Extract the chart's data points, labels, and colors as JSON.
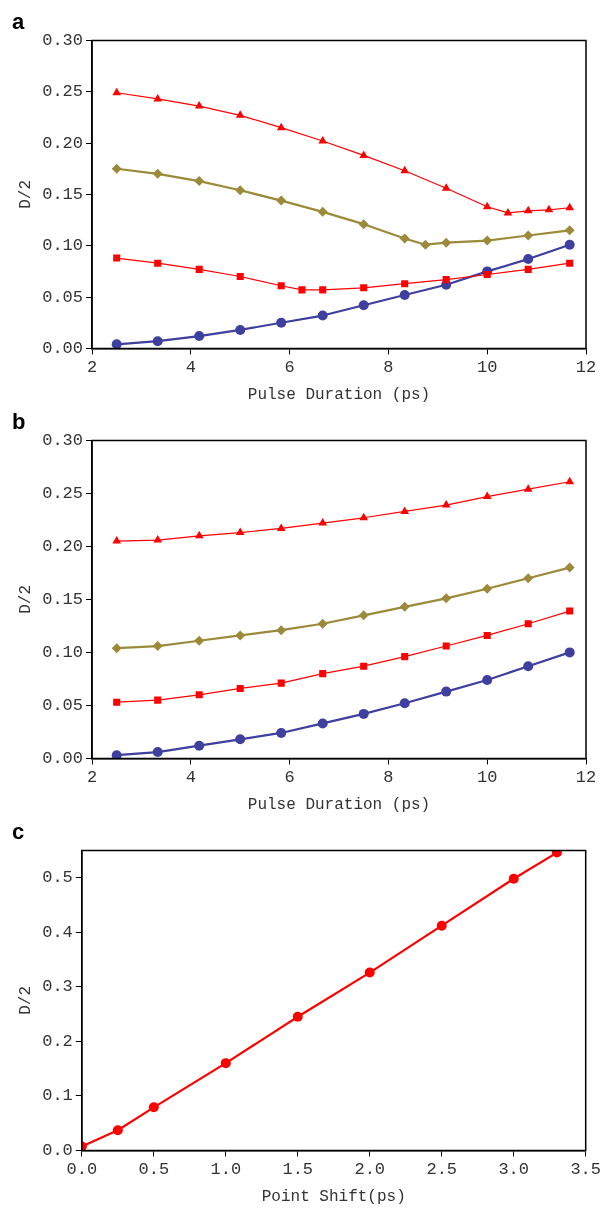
{
  "chart_data": [
    {
      "type": "line",
      "title": "a",
      "xlabel": "Pulse Duration (ps)",
      "ylabel": "D/2",
      "xlim": [
        2,
        12
      ],
      "xticks": [
        2,
        4,
        6,
        8,
        10,
        12
      ],
      "ylim": [
        0,
        0.3
      ],
      "yticks": [
        {
          "value": 0,
          "label": "0.00"
        },
        {
          "value": 0.05,
          "label": "0.05"
        },
        {
          "value": 0.1,
          "label": "0.10"
        },
        {
          "value": 0.15,
          "label": "0.15"
        },
        {
          "value": 0.2,
          "label": "0.20"
        },
        {
          "value": 0.25,
          "label": "0.25"
        },
        {
          "value": 0.3,
          "label": "0.30"
        }
      ],
      "grid": false,
      "line_style": "solid",
      "series": [
        {
          "color": "#ff0000",
          "marker": "triangle",
          "x": [
            2.5,
            3.33,
            4.17,
            5,
            5.83,
            6.67,
            7.5,
            8.33,
            9.17,
            10,
            10.42,
            10.83,
            11.25,
            11.67
          ],
          "values": [
            0.249,
            0.243,
            0.236,
            0.227,
            0.215,
            0.202,
            0.188,
            0.173,
            0.156,
            0.138,
            0.132,
            0.134,
            0.135,
            0.137
          ]
        },
        {
          "color": "#9a8a3a",
          "marker": "diamond",
          "x": [
            2.5,
            3.33,
            4.17,
            5,
            5.83,
            6.67,
            7.5,
            8.33,
            8.75,
            9.17,
            10,
            10.83,
            11.67
          ],
          "values": [
            0.175,
            0.17,
            0.163,
            0.154,
            0.144,
            0.133,
            0.121,
            0.107,
            0.101,
            0.103,
            0.105,
            0.11,
            0.115
          ]
        },
        {
          "color": "#ff0000",
          "marker": "square",
          "x": [
            2.5,
            3.33,
            4.17,
            5,
            5.83,
            6.25,
            6.67,
            7.5,
            8.33,
            9.17,
            10,
            10.83,
            11.67
          ],
          "values": [
            0.088,
            0.083,
            0.077,
            0.07,
            0.061,
            0.057,
            0.057,
            0.059,
            0.063,
            0.067,
            0.072,
            0.077,
            0.083
          ]
        },
        {
          "color": "#3f3f9f",
          "marker": "circle",
          "x": [
            2.5,
            3.33,
            4.17,
            5,
            5.83,
            6.67,
            7.5,
            8.33,
            9.17,
            10,
            10.83,
            11.67
          ],
          "values": [
            0.004,
            0.007,
            0.012,
            0.018,
            0.025,
            0.032,
            0.042,
            0.052,
            0.062,
            0.075,
            0.087,
            0.101
          ]
        }
      ]
    },
    {
      "type": "line",
      "title": "b",
      "xlabel": "Pulse Duration (ps)",
      "ylabel": "D/2",
      "xlim": [
        2,
        12
      ],
      "xticks": [
        2,
        4,
        6,
        8,
        10,
        12
      ],
      "ylim": [
        0,
        0.3
      ],
      "yticks": [
        {
          "value": 0,
          "label": "0.00"
        },
        {
          "value": 0.05,
          "label": "0.05"
        },
        {
          "value": 0.1,
          "label": "0.10"
        },
        {
          "value": 0.15,
          "label": "0.15"
        },
        {
          "value": 0.2,
          "label": "0.20"
        },
        {
          "value": 0.25,
          "label": "0.25"
        },
        {
          "value": 0.3,
          "label": "0.30"
        }
      ],
      "grid": false,
      "line_style": "solid",
      "series": [
        {
          "color": "#ff0000",
          "marker": "triangle",
          "x": [
            2.5,
            3.33,
            4.17,
            5,
            5.83,
            6.67,
            7.5,
            8.33,
            9.17,
            10,
            10.83,
            11.67
          ],
          "values": [
            0.205,
            0.206,
            0.21,
            0.213,
            0.217,
            0.222,
            0.227,
            0.233,
            0.239,
            0.247,
            0.254,
            0.261
          ]
        },
        {
          "color": "#9a8a3a",
          "marker": "diamond",
          "x": [
            2.5,
            3.33,
            4.17,
            5,
            5.83,
            6.67,
            7.5,
            8.33,
            9.17,
            10,
            10.83,
            11.67
          ],
          "values": [
            0.104,
            0.106,
            0.111,
            0.116,
            0.121,
            0.127,
            0.135,
            0.143,
            0.151,
            0.16,
            0.17,
            0.18
          ]
        },
        {
          "color": "#ff0000",
          "marker": "square",
          "x": [
            2.5,
            3.33,
            4.17,
            5,
            5.83,
            6.67,
            7.5,
            8.33,
            9.17,
            10,
            10.83,
            11.67
          ],
          "values": [
            0.053,
            0.055,
            0.06,
            0.066,
            0.071,
            0.08,
            0.087,
            0.096,
            0.106,
            0.116,
            0.127,
            0.139
          ]
        },
        {
          "color": "#3f3f9f",
          "marker": "circle",
          "x": [
            2.5,
            3.33,
            4.17,
            5,
            5.83,
            6.67,
            7.5,
            8.33,
            9.17,
            10,
            10.83,
            11.67
          ],
          "values": [
            0.003,
            0.006,
            0.012,
            0.018,
            0.024,
            0.033,
            0.042,
            0.052,
            0.063,
            0.074,
            0.087,
            0.1
          ]
        }
      ]
    },
    {
      "type": "line",
      "title": "c",
      "xlabel": "Point Shift(ps)",
      "ylabel": "D/2",
      "xlim": [
        0,
        3.5
      ],
      "xticks": [
        {
          "value": 0,
          "label": "0.0"
        },
        {
          "value": 0.5,
          "label": "0.5"
        },
        {
          "value": 1,
          "label": "1.0"
        },
        {
          "value": 1.5,
          "label": "1.5"
        },
        {
          "value": 2,
          "label": "2.0"
        },
        {
          "value": 2.5,
          "label": "2.5"
        },
        {
          "value": 3,
          "label": "3.0"
        },
        {
          "value": 3.5,
          "label": "3.5"
        }
      ],
      "ylim": [
        0,
        0.55
      ],
      "yticks": [
        {
          "value": 0,
          "label": "0.0"
        },
        {
          "value": 0.1,
          "label": "0.1"
        },
        {
          "value": 0.2,
          "label": "0.2"
        },
        {
          "value": 0.3,
          "label": "0.3"
        },
        {
          "value": 0.4,
          "label": "0.4"
        },
        {
          "value": 0.5,
          "label": "0.5"
        }
      ],
      "grid": false,
      "line_style": "solid",
      "series": [
        {
          "color": "#ff0000",
          "marker": "circle",
          "x": [
            0,
            0.25,
            0.5,
            1,
            1.5,
            2,
            2.5,
            3,
            3.3
          ],
          "values": [
            0.007,
            0.037,
            0.079,
            0.16,
            0.245,
            0.326,
            0.412,
            0.498,
            0.546
          ]
        }
      ]
    }
  ]
}
